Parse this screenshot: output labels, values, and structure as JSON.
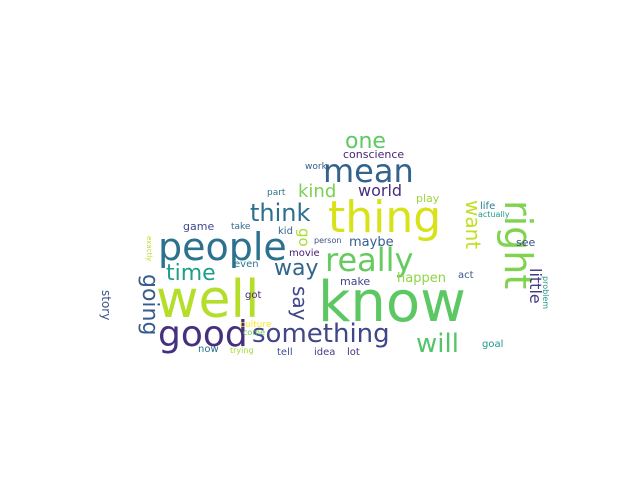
{
  "wordcloud": {
    "words": [
      {
        "text": "know",
        "color": "#5cc863"
      },
      {
        "text": "well",
        "color": "#b5de2b"
      },
      {
        "text": "thing",
        "color": "#d8e219"
      },
      {
        "text": "people",
        "color": "#2c728e"
      },
      {
        "text": "good",
        "color": "#46307e"
      },
      {
        "text": "right",
        "color": "#7fd34e"
      },
      {
        "text": "mean",
        "color": "#33638d"
      },
      {
        "text": "really",
        "color": "#65cb5e"
      },
      {
        "text": "something",
        "color": "#404688"
      },
      {
        "text": "think",
        "color": "#2d708e"
      },
      {
        "text": "will",
        "color": "#52c569"
      },
      {
        "text": "one",
        "color": "#5ec962"
      },
      {
        "text": "going",
        "color": "#375b8d"
      },
      {
        "text": "time",
        "color": "#1f9e89"
      },
      {
        "text": "way",
        "color": "#32658e"
      },
      {
        "text": "say",
        "color": "#3f4788"
      },
      {
        "text": "want",
        "color": "#c2df23"
      },
      {
        "text": "kind",
        "color": "#7ad151"
      },
      {
        "text": "world",
        "color": "#472d7b"
      },
      {
        "text": "little",
        "color": "#443a83"
      },
      {
        "text": "go",
        "color": "#a8db34"
      },
      {
        "text": "maybe",
        "color": "#355f8d"
      },
      {
        "text": "happen",
        "color": "#8ed645"
      },
      {
        "text": "make",
        "color": "#414487"
      },
      {
        "text": "story",
        "color": "#3b528b"
      },
      {
        "text": "conscience",
        "color": "#481f70"
      },
      {
        "text": "game",
        "color": "#3e4989"
      },
      {
        "text": "see",
        "color": "#3e4c8a"
      },
      {
        "text": "play",
        "color": "#9bd93c"
      },
      {
        "text": "life",
        "color": "#26818e"
      },
      {
        "text": "act",
        "color": "#38588c"
      },
      {
        "text": "goal",
        "color": "#1f958b"
      },
      {
        "text": "lot",
        "color": "#472c7a"
      },
      {
        "text": "idea",
        "color": "#433e85"
      },
      {
        "text": "tell",
        "color": "#3b528b"
      },
      {
        "text": "now",
        "color": "#2d708e"
      },
      {
        "text": "got",
        "color": "#482878"
      },
      {
        "text": "movie",
        "color": "#481c6e"
      },
      {
        "text": "even",
        "color": "#2a768e"
      },
      {
        "text": "kid",
        "color": "#32658e"
      },
      {
        "text": "take",
        "color": "#31688e"
      },
      {
        "text": "part",
        "color": "#2c738e"
      },
      {
        "text": "work",
        "color": "#38598c"
      },
      {
        "text": "person",
        "color": "#3b528b"
      },
      {
        "text": "culture",
        "color": "#fde725"
      },
      {
        "text": "trying",
        "color": "#a2da37"
      },
      {
        "text": "come",
        "color": "#6ccd5a"
      },
      {
        "text": "actually",
        "color": "#1e9c89"
      },
      {
        "text": "problem",
        "color": "#1f988b"
      },
      {
        "text": "exactly",
        "color": "#bade28"
      }
    ]
  }
}
